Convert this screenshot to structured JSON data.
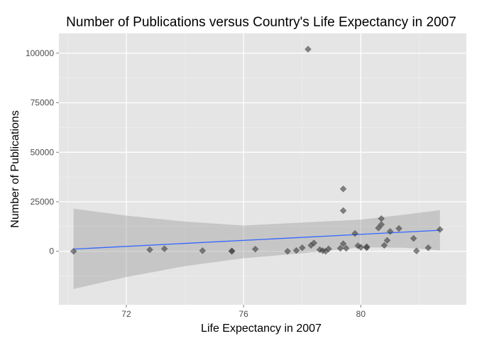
{
  "chart_data": {
    "type": "scatter",
    "title": "Number of Publications versus Country's Life Expectancy in 2007",
    "xlabel": "Life Expectancy in 2007",
    "ylabel": "Number of Publications",
    "xlim": [
      69.7,
      83.6
    ],
    "ylim": [
      -27000,
      110000
    ],
    "x_ticks": [
      72,
      76,
      80
    ],
    "x_tick_labels": [
      "72",
      "76",
      "80"
    ],
    "y_ticks": [
      0,
      25000,
      50000,
      75000,
      100000
    ],
    "y_tick_labels": [
      "0",
      "25000",
      "50000",
      "75000",
      "100000"
    ],
    "grid": true,
    "legend": "none",
    "points": [
      {
        "x": 70.2,
        "y": 0
      },
      {
        "x": 72.8,
        "y": 800
      },
      {
        "x": 73.3,
        "y": 1300
      },
      {
        "x": 74.6,
        "y": 300
      },
      {
        "x": 75.6,
        "y": 0
      },
      {
        "x": 75.6,
        "y": 200
      },
      {
        "x": 76.4,
        "y": 1100
      },
      {
        "x": 77.5,
        "y": 0
      },
      {
        "x": 77.8,
        "y": 400
      },
      {
        "x": 78.0,
        "y": 1800
      },
      {
        "x": 78.2,
        "y": 102000
      },
      {
        "x": 78.3,
        "y": 3000
      },
      {
        "x": 78.4,
        "y": 4200
      },
      {
        "x": 78.6,
        "y": 800
      },
      {
        "x": 78.7,
        "y": 300
      },
      {
        "x": 78.8,
        "y": 0
      },
      {
        "x": 78.9,
        "y": 1200
      },
      {
        "x": 79.3,
        "y": 1500
      },
      {
        "x": 79.4,
        "y": 20500
      },
      {
        "x": 79.4,
        "y": 31500
      },
      {
        "x": 79.4,
        "y": 3800
      },
      {
        "x": 79.5,
        "y": 1500
      },
      {
        "x": 79.8,
        "y": 9000
      },
      {
        "x": 79.9,
        "y": 2800
      },
      {
        "x": 80.0,
        "y": 2000
      },
      {
        "x": 80.2,
        "y": 2300
      },
      {
        "x": 80.2,
        "y": 1800
      },
      {
        "x": 80.6,
        "y": 11800
      },
      {
        "x": 80.7,
        "y": 13500
      },
      {
        "x": 80.7,
        "y": 16500
      },
      {
        "x": 80.8,
        "y": 3000
      },
      {
        "x": 80.9,
        "y": 5500
      },
      {
        "x": 81.0,
        "y": 10000
      },
      {
        "x": 81.3,
        "y": 11500
      },
      {
        "x": 81.8,
        "y": 6500
      },
      {
        "x": 81.9,
        "y": 200
      },
      {
        "x": 82.3,
        "y": 1800
      },
      {
        "x": 82.7,
        "y": 11000
      }
    ],
    "fit_line": {
      "x": [
        70.2,
        82.7
      ],
      "y": [
        1100,
        10600
      ]
    },
    "confidence_band": {
      "x": [
        70.2,
        72.0,
        74.0,
        76.0,
        78.0,
        80.0,
        81.5,
        82.7
      ],
      "lower": [
        -19000,
        -13000,
        -7500,
        -3500,
        -1000,
        2000,
        1800,
        500
      ],
      "upper": [
        21500,
        18000,
        15000,
        13000,
        14500,
        16000,
        18500,
        20800
      ]
    },
    "colors": {
      "panel": "#e5e5e5",
      "grid_major": "#ffffff",
      "grid_minor": "#f0f0f0",
      "points": "#3a3a3a",
      "fit_line": "#3366ff",
      "band": "#999999"
    }
  }
}
